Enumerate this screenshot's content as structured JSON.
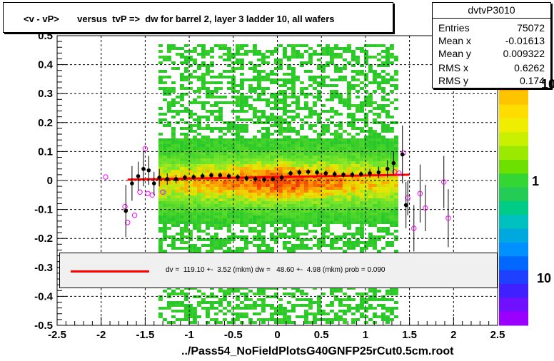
{
  "title": "<v - vP>       versus  tvP =>  dw for barrel 2, layer 3 ladder 10, all wafers",
  "footer": "../Pass54_NoFieldPlotsG40GNFP25rCut0.5cm.root",
  "stats": {
    "name": "dvtvP3010",
    "rows": [
      {
        "label": "Entries",
        "value": "75072"
      },
      {
        "label": "Mean x",
        "value": "-0.01613"
      },
      {
        "label": "Mean y",
        "value": "0.009322"
      },
      {
        "label": "RMS x",
        "value": "0.6262"
      },
      {
        "label": "RMS y",
        "value": "0.174"
      }
    ]
  },
  "fit": {
    "text": "dv =  119.10 +-  3.52 (mkm) dw =   48.60 +-  4.98 (mkm) prob = 0.090",
    "line_color": "#ff0000"
  },
  "palette_labels": [
    "10",
    "1",
    "10"
  ],
  "chart_data": {
    "type": "heatmap",
    "title": "<v - vP>       versus  tvP =>  dw for barrel 2, layer 3 ladder 10, all wafers",
    "xlim": [
      -2.5,
      2.5
    ],
    "ylim": [
      -0.5,
      0.5
    ],
    "x_ticks": [
      "-2.5",
      "-2",
      "-1.5",
      "-1",
      "-0.5",
      "0",
      "0.5",
      "1",
      "1.5",
      "2",
      "2.5"
    ],
    "y_ticks": [
      "-0.5",
      "-0.4",
      "-0.3",
      "-0.2",
      "-0.1",
      "0",
      "0.1",
      "0.2",
      "0.3",
      "0.4",
      "0.5"
    ],
    "grid": true,
    "density_x_range": [
      -1.35,
      1.35
    ],
    "fit_line": {
      "x": [
        -1.7,
        1.5
      ],
      "y": [
        0.003,
        0.02
      ],
      "color": "#ff0000"
    },
    "profile_points": [
      {
        "x": -1.72,
        "y": -0.105,
        "err": 0.09
      },
      {
        "x": -1.65,
        "y": -0.01,
        "err": 0.06
      },
      {
        "x": -1.58,
        "y": 0.015,
        "err": 0.05
      },
      {
        "x": -1.52,
        "y": 0.04,
        "err": 0.06
      },
      {
        "x": -1.46,
        "y": 0.035,
        "err": 0.05
      },
      {
        "x": -1.4,
        "y": -0.01,
        "err": 0.04
      },
      {
        "x": -1.34,
        "y": 0.01,
        "err": 0.03
      },
      {
        "x": -1.25,
        "y": 0.005,
        "err": 0.02
      },
      {
        "x": -1.15,
        "y": 0.005,
        "err": 0.015
      },
      {
        "x": -1.05,
        "y": 0.01,
        "err": 0.01
      },
      {
        "x": -0.95,
        "y": 0.012,
        "err": 0.01
      },
      {
        "x": -0.85,
        "y": 0.015,
        "err": 0.01
      },
      {
        "x": -0.75,
        "y": 0.018,
        "err": 0.01
      },
      {
        "x": -0.65,
        "y": 0.018,
        "err": 0.01
      },
      {
        "x": -0.55,
        "y": 0.015,
        "err": 0.01
      },
      {
        "x": -0.45,
        "y": 0.012,
        "err": 0.01
      },
      {
        "x": -0.35,
        "y": 0.008,
        "err": 0.01
      },
      {
        "x": -0.25,
        "y": 0.005,
        "err": 0.01
      },
      {
        "x": -0.15,
        "y": 0.003,
        "err": 0.01
      },
      {
        "x": -0.05,
        "y": 0.005,
        "err": 0.01
      },
      {
        "x": 0.05,
        "y": 0.01,
        "err": 0.01
      },
      {
        "x": 0.15,
        "y": 0.025,
        "err": 0.01
      },
      {
        "x": 0.25,
        "y": 0.028,
        "err": 0.01
      },
      {
        "x": 0.35,
        "y": 0.03,
        "err": 0.01
      },
      {
        "x": 0.45,
        "y": 0.028,
        "err": 0.01
      },
      {
        "x": 0.55,
        "y": 0.025,
        "err": 0.01
      },
      {
        "x": 0.65,
        "y": 0.022,
        "err": 0.01
      },
      {
        "x": 0.75,
        "y": 0.02,
        "err": 0.01
      },
      {
        "x": 0.85,
        "y": 0.02,
        "err": 0.01
      },
      {
        "x": 0.95,
        "y": 0.022,
        "err": 0.01
      },
      {
        "x": 1.05,
        "y": 0.025,
        "err": 0.015
      },
      {
        "x": 1.15,
        "y": 0.028,
        "err": 0.02
      },
      {
        "x": 1.25,
        "y": 0.04,
        "err": 0.03
      },
      {
        "x": 1.32,
        "y": 0.06,
        "err": 0.04
      },
      {
        "x": 1.42,
        "y": 0.09,
        "err": 0.1
      },
      {
        "x": 1.46,
        "y": -0.085,
        "err": 0.08
      }
    ],
    "open_points": [
      {
        "x": -1.95,
        "y": 0.012,
        "err": 0.0
      },
      {
        "x": -1.73,
        "y": -0.09,
        "err": 0.0
      },
      {
        "x": -1.7,
        "y": -0.145,
        "err": 0.0
      },
      {
        "x": -1.62,
        "y": -0.12,
        "err": 0.0
      },
      {
        "x": -1.56,
        "y": -0.04,
        "err": 0.0
      },
      {
        "x": -1.5,
        "y": 0.11,
        "err": 0.0
      },
      {
        "x": -1.47,
        "y": -0.045,
        "err": 0.0
      },
      {
        "x": -1.42,
        "y": -0.05,
        "err": 0.0
      },
      {
        "x": -1.3,
        "y": -0.04,
        "err": 0.0
      },
      {
        "x": 1.33,
        "y": 0.03,
        "err": 0.0
      },
      {
        "x": 1.38,
        "y": 0.025,
        "err": 0.0
      },
      {
        "x": 1.43,
        "y": 0.095,
        "err": 0.0
      },
      {
        "x": 1.48,
        "y": -0.06,
        "err": 0.06
      },
      {
        "x": 1.55,
        "y": -0.165,
        "err": 0.08
      },
      {
        "x": 1.62,
        "y": -0.045,
        "err": 0.1
      },
      {
        "x": 1.68,
        "y": -0.095,
        "err": 0.08
      },
      {
        "x": 1.89,
        "y": -0.005,
        "err": 0.09
      },
      {
        "x": 1.94,
        "y": -0.13,
        "err": 0.1
      }
    ]
  }
}
